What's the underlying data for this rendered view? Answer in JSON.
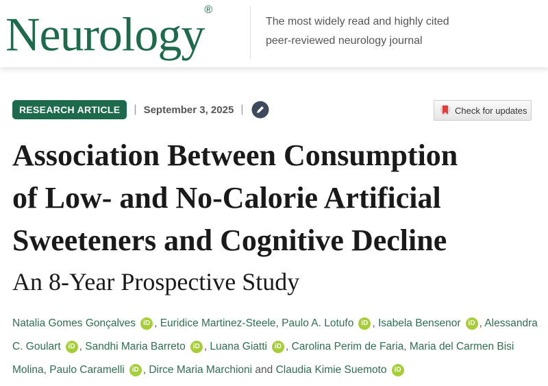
{
  "header": {
    "logo": "Neurology",
    "logo_mark": "®",
    "tagline": "The most widely read and highly cited peer-reviewed neurology journal"
  },
  "article": {
    "badge": "RESEARCH ARTICLE",
    "divider": "|",
    "date": "September 3, 2025",
    "check_updates": "Check for updates",
    "title_lines": [
      "Association Between Consumption",
      "of Low- and No-Calorie Artificial",
      "Sweeteners and Cognitive Decline"
    ],
    "subtitle": "An 8-Year Prospective Study",
    "authors": {
      "orcid_label": "iD",
      "separator": ",",
      "conjunction": "and",
      "list": [
        {
          "name": "Natalia Gomes Gonçalves",
          "orcid": true
        },
        {
          "name": "Euridice Martinez-Steele",
          "orcid": false
        },
        {
          "name": "Paulo A. Lotufo",
          "orcid": true
        },
        {
          "name": "Isabela Bensenor",
          "orcid": true
        },
        {
          "name": "Alessandra C. Goulart",
          "orcid": true
        },
        {
          "name": "Sandhi Maria Barreto",
          "orcid": true
        },
        {
          "name": "Luana Giatti",
          "orcid": true
        },
        {
          "name": "Carolina Perim de Faria",
          "orcid": false
        },
        {
          "name": "Maria del Carmen Bisi Molina",
          "orcid": false
        },
        {
          "name": "Paulo Caramelli",
          "orcid": true
        },
        {
          "name": "Dirce Maria Marchioni",
          "orcid": false
        },
        {
          "name": "Claudia Kimie Suemoto",
          "orcid": true
        }
      ]
    }
  }
}
